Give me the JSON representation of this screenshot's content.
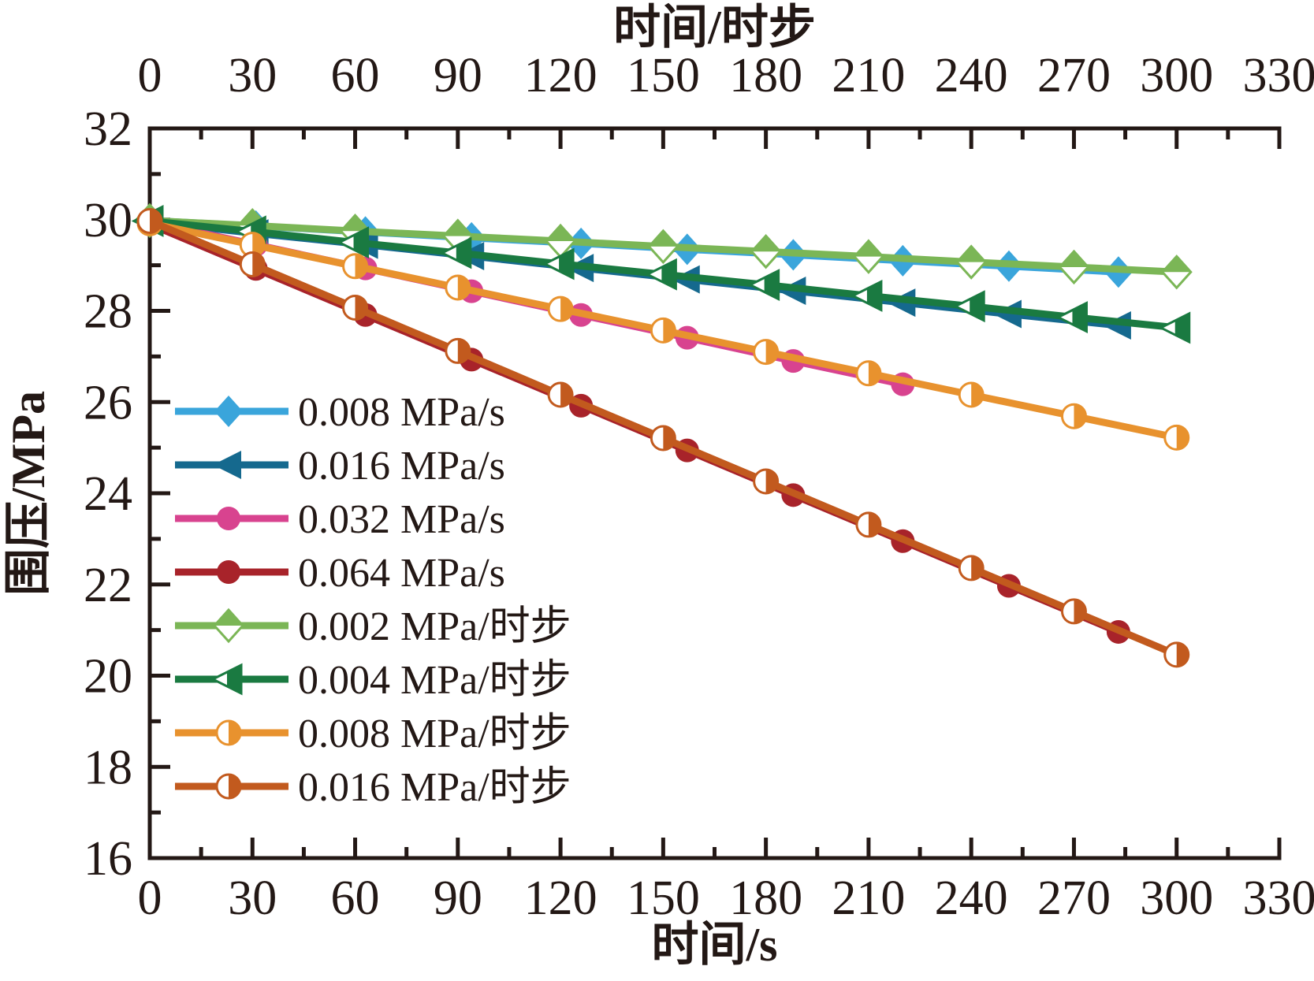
{
  "figure": {
    "background": "#ffffff",
    "text_color": "#231815"
  },
  "chart_data": {
    "type": "line",
    "title_top_axis": "时间/时步",
    "xlabel": "时间/s",
    "ylabel": "围压/MPa",
    "x_axis": {
      "min": 0,
      "max": 330,
      "major_step": 30,
      "minor_step": 15,
      "tick_labels": [
        "0",
        "30",
        "60",
        "90",
        "120",
        "150",
        "180",
        "210",
        "240",
        "270",
        "300",
        "330"
      ]
    },
    "top_axis": {
      "min": 0,
      "max": 330,
      "major_step": 30,
      "minor_step": 15,
      "tick_labels": [
        "0",
        "30",
        "60",
        "90",
        "120",
        "150",
        "180",
        "210",
        "240",
        "270",
        "300",
        "330"
      ]
    },
    "y_axis": {
      "min": 16,
      "max": 32,
      "major_step": 2,
      "minor_step": 1,
      "tick_labels": [
        "16",
        "18",
        "20",
        "22",
        "24",
        "26",
        "28",
        "30",
        "32"
      ]
    },
    "grid": "off",
    "legend_position": "inside-left-middle",
    "series": [
      {
        "name": "0.008 MPa/s",
        "color": "#3AA5DB",
        "marker": "diamond",
        "fill": "full",
        "x": [
          0,
          31,
          63,
          94,
          126,
          157,
          188,
          220,
          251,
          283
        ],
        "y": [
          29.98,
          29.86,
          29.73,
          29.6,
          29.48,
          29.35,
          29.23,
          29.1,
          28.98,
          28.85
        ]
      },
      {
        "name": "0.016 MPa/s",
        "color": "#15698E",
        "marker": "triangle-left",
        "fill": "full",
        "x": [
          0,
          31,
          63,
          94,
          126,
          157,
          188,
          220,
          251,
          283
        ],
        "y": [
          29.95,
          29.7,
          29.45,
          29.2,
          28.94,
          28.69,
          28.44,
          28.18,
          27.93,
          27.68
        ]
      },
      {
        "name": "0.032 MPa/s",
        "color": "#D8438F",
        "marker": "circle",
        "fill": "full",
        "x": [
          0,
          31,
          63,
          94,
          126,
          157,
          188,
          220
        ],
        "y": [
          29.95,
          29.45,
          28.93,
          28.43,
          27.91,
          27.41,
          26.9,
          26.39
        ]
      },
      {
        "name": "0.064 MPa/s",
        "color": "#A8232A",
        "marker": "circle",
        "fill": "full",
        "x": [
          0,
          31,
          63,
          94,
          126,
          157,
          188,
          220,
          251,
          283
        ],
        "y": [
          29.9,
          28.92,
          27.91,
          26.93,
          25.92,
          24.94,
          23.96,
          22.95,
          21.97,
          20.96
        ]
      },
      {
        "name": "0.002 MPa/时步",
        "color": "#7BB656",
        "marker": "diamond",
        "fill": "half",
        "x": [
          0,
          30,
          60,
          90,
          120,
          150,
          180,
          210,
          240,
          270,
          300
        ],
        "y": [
          29.98,
          29.87,
          29.75,
          29.64,
          29.53,
          29.41,
          29.3,
          29.19,
          29.07,
          28.96,
          28.85
        ]
      },
      {
        "name": "0.004 MPa/时步",
        "color": "#1A7A41",
        "marker": "triangle-left",
        "fill": "half",
        "x": [
          0,
          30,
          60,
          90,
          120,
          150,
          180,
          210,
          240,
          270,
          300
        ],
        "y": [
          29.97,
          29.74,
          29.5,
          29.27,
          29.03,
          28.8,
          28.57,
          28.33,
          28.1,
          27.86,
          27.63
        ]
      },
      {
        "name": "0.008 MPa/时步",
        "color": "#E8922E",
        "marker": "circle",
        "fill": "half",
        "x": [
          0,
          30,
          60,
          90,
          120,
          150,
          180,
          210,
          240,
          270,
          300
        ],
        "y": [
          29.92,
          29.45,
          28.98,
          28.51,
          28.04,
          27.57,
          27.1,
          26.63,
          26.16,
          25.69,
          25.22
        ]
      },
      {
        "name": "0.016 MPa/时步",
        "color": "#C25A1E",
        "marker": "circle",
        "fill": "half",
        "x": [
          0,
          30,
          60,
          90,
          120,
          150,
          180,
          210,
          240,
          270,
          300
        ],
        "y": [
          29.97,
          29.02,
          28.07,
          27.12,
          26.16,
          25.21,
          24.26,
          23.31,
          22.36,
          21.41,
          20.46
        ]
      }
    ]
  }
}
